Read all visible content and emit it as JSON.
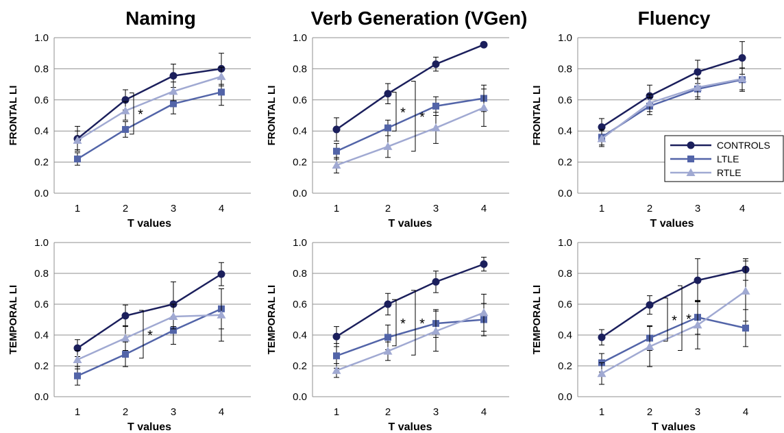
{
  "colors": {
    "CONTROLS": "#1b1f5c",
    "LTLE": "#5264a8",
    "RTLE": "#a0a9d2",
    "grid": "#8f8f8f",
    "axis": "#8f8f8f"
  },
  "legend": {
    "entries": [
      {
        "name": "CONTROLS",
        "marker": "circle"
      },
      {
        "name": "LTLE",
        "marker": "square"
      },
      {
        "name": "RTLE",
        "marker": "triangle"
      }
    ]
  },
  "chart_data": [
    {
      "type": "line",
      "title": "Naming",
      "xlabel": "T values",
      "ylabel": "FRONTAL LI",
      "x": [
        1,
        2,
        3,
        4
      ],
      "ylim": [
        0,
        1.0
      ],
      "yticks": [
        "0.0",
        "0.2",
        "0.4",
        "0.6",
        "0.8",
        "1.0"
      ],
      "grid": true,
      "series": [
        {
          "name": "CONTROLS",
          "values": [
            0.35,
            0.6,
            0.755,
            0.8
          ],
          "err": [
            0.08,
            0.065,
            0.075,
            0.1
          ]
        },
        {
          "name": "LTLE",
          "values": [
            0.22,
            0.41,
            0.575,
            0.65
          ],
          "err": [
            0.04,
            0.05,
            0.065,
            0.085
          ]
        },
        {
          "name": "RTLE",
          "values": [
            0.34,
            0.53,
            0.655,
            0.75
          ],
          "err": [
            0.06,
            0.06,
            0.06,
            0.06
          ]
        }
      ],
      "significance": [
        {
          "x": 2,
          "y1": 0.38,
          "y2": 0.645,
          "label": "*"
        }
      ]
    },
    {
      "type": "line",
      "title": "Verb Generation (VGen)",
      "xlabel": "T values",
      "ylabel": "FRONTAL LI",
      "x": [
        1,
        2,
        3,
        4
      ],
      "ylim": [
        0,
        1.0
      ],
      "yticks": [
        "0.0",
        "0.2",
        "0.4",
        "0.6",
        "0.8",
        "1.0"
      ],
      "grid": true,
      "series": [
        {
          "name": "CONTROLS",
          "values": [
            0.41,
            0.64,
            0.83,
            0.955
          ],
          "err": [
            0.075,
            0.065,
            0.045,
            0.015
          ]
        },
        {
          "name": "LTLE",
          "values": [
            0.27,
            0.42,
            0.56,
            0.61
          ],
          "err": [
            0.05,
            0.05,
            0.06,
            0.085
          ]
        },
        {
          "name": "RTLE",
          "values": [
            0.18,
            0.3,
            0.42,
            0.55
          ],
          "err": [
            0.05,
            0.07,
            0.1,
            0.12
          ]
        }
      ],
      "significance": [
        {
          "x": 2,
          "y1": 0.4,
          "y2": 0.65,
          "label": "*"
        },
        {
          "x": 2.4,
          "y1": 0.27,
          "y2": 0.72,
          "label": "*"
        }
      ]
    },
    {
      "type": "line",
      "title": "Fluency",
      "xlabel": "T values",
      "ylabel": "FRONTAL LI",
      "x": [
        1,
        2,
        3,
        4
      ],
      "ylim": [
        0,
        1.0
      ],
      "yticks": [
        "0.0",
        "0.2",
        "0.4",
        "0.6",
        "0.8",
        "1.0"
      ],
      "grid": true,
      "legend": "right",
      "series": [
        {
          "name": "CONTROLS",
          "values": [
            0.425,
            0.625,
            0.78,
            0.87
          ],
          "err": [
            0.055,
            0.07,
            0.075,
            0.105
          ]
        },
        {
          "name": "LTLE",
          "values": [
            0.36,
            0.56,
            0.67,
            0.73
          ],
          "err": [
            0.05,
            0.055,
            0.065,
            0.075
          ]
        },
        {
          "name": "RTLE",
          "values": [
            0.35,
            0.58,
            0.68,
            0.735
          ],
          "err": [
            0.05,
            0.055,
            0.06,
            0.07
          ]
        }
      ],
      "significance": []
    },
    {
      "type": "line",
      "title": "",
      "xlabel": "T values",
      "ylabel": "TEMPORAL LI",
      "x": [
        1,
        2,
        3,
        4
      ],
      "ylim": [
        0,
        1.0
      ],
      "yticks": [
        "0.0",
        "0.2",
        "0.4",
        "0.6",
        "0.8",
        "1.0"
      ],
      "grid": true,
      "series": [
        {
          "name": "CONTROLS",
          "values": [
            0.315,
            0.525,
            0.6,
            0.795
          ],
          "err": [
            0.055,
            0.07,
            0.145,
            0.075
          ]
        },
        {
          "name": "LTLE",
          "values": [
            0.135,
            0.275,
            0.43,
            0.57
          ],
          "err": [
            0.06,
            0.08,
            0.09,
            0.13
          ]
        },
        {
          "name": "RTLE",
          "values": [
            0.24,
            0.38,
            0.52,
            0.53
          ],
          "err": [
            0.06,
            0.08,
            0.08,
            0.17
          ]
        }
      ],
      "significance": [
        {
          "x": 2.2,
          "y1": 0.25,
          "y2": 0.56,
          "label": "*"
        }
      ]
    },
    {
      "type": "line",
      "title": "",
      "xlabel": "T values",
      "ylabel": "TEMPORAL LI",
      "x": [
        1,
        2,
        3,
        4
      ],
      "ylim": [
        0,
        1.0
      ],
      "yticks": [
        "0.0",
        "0.2",
        "0.4",
        "0.6",
        "0.8",
        "1.0"
      ],
      "grid": true,
      "series": [
        {
          "name": "CONTROLS",
          "values": [
            0.39,
            0.6,
            0.745,
            0.86
          ],
          "err": [
            0.065,
            0.07,
            0.07,
            0.045
          ]
        },
        {
          "name": "LTLE",
          "values": [
            0.265,
            0.385,
            0.475,
            0.5
          ],
          "err": [
            0.08,
            0.08,
            0.09,
            0.105
          ]
        },
        {
          "name": "RTLE",
          "values": [
            0.17,
            0.295,
            0.425,
            0.545
          ],
          "err": [
            0.045,
            0.06,
            0.13,
            0.12
          ]
        }
      ],
      "significance": [
        {
          "x": 2,
          "y1": 0.33,
          "y2": 0.63,
          "label": "*"
        },
        {
          "x": 2.4,
          "y1": 0.27,
          "y2": 0.69,
          "label": "*"
        }
      ]
    },
    {
      "type": "line",
      "title": "",
      "xlabel": "T values",
      "ylabel": "TEMPORAL LI",
      "x": [
        1,
        2,
        3,
        4
      ],
      "ylim": [
        0,
        1.0
      ],
      "yticks": [
        "0.0",
        "0.2",
        "0.4",
        "0.6",
        "0.8",
        "1.0"
      ],
      "grid": true,
      "series": [
        {
          "name": "CONTROLS",
          "values": [
            0.385,
            0.595,
            0.755,
            0.825
          ],
          "err": [
            0.05,
            0.06,
            0.14,
            0.07
          ]
        },
        {
          "name": "LTLE",
          "values": [
            0.22,
            0.38,
            0.515,
            0.445
          ],
          "err": [
            0.06,
            0.08,
            0.11,
            0.12
          ]
        },
        {
          "name": "RTLE",
          "values": [
            0.15,
            0.325,
            0.465,
            0.685
          ],
          "err": [
            0.07,
            0.13,
            0.155,
            0.195
          ]
        }
      ],
      "significance": [
        {
          "x": 2.2,
          "y1": 0.36,
          "y2": 0.64,
          "label": "*"
        },
        {
          "x": 2.5,
          "y1": 0.3,
          "y2": 0.72,
          "label": "*"
        }
      ]
    }
  ]
}
